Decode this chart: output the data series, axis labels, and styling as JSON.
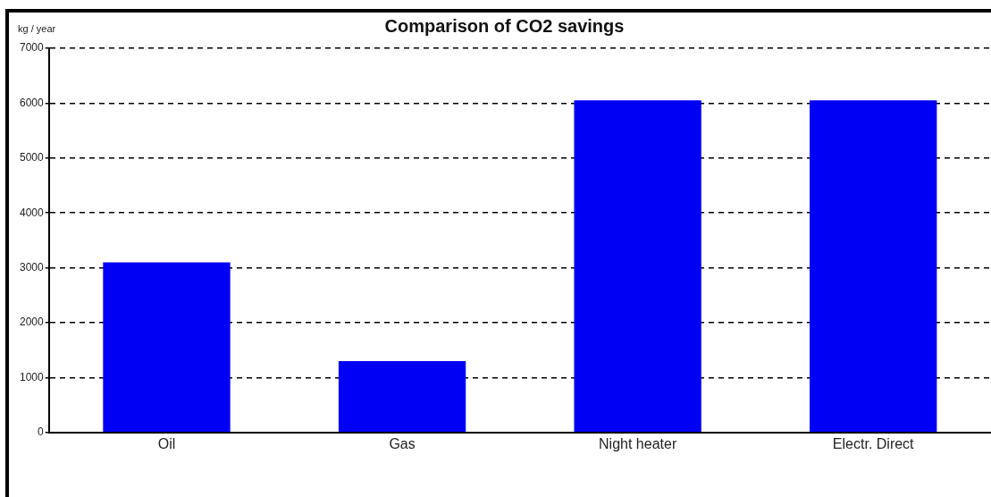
{
  "chart_data": {
    "type": "bar",
    "title": "Comparison of CO2 savings",
    "ylabel": "kg / year",
    "categories": [
      "Oil",
      "Gas",
      "Night heater",
      "Electr. Direct"
    ],
    "values": [
      3100,
      1300,
      6050,
      6050
    ],
    "color": "#0000f5",
    "ylim": [
      0,
      7000
    ],
    "yticks": [
      0,
      1000,
      2000,
      3000,
      4000,
      5000,
      6000,
      7000
    ],
    "grid": "y",
    "legend": false
  }
}
